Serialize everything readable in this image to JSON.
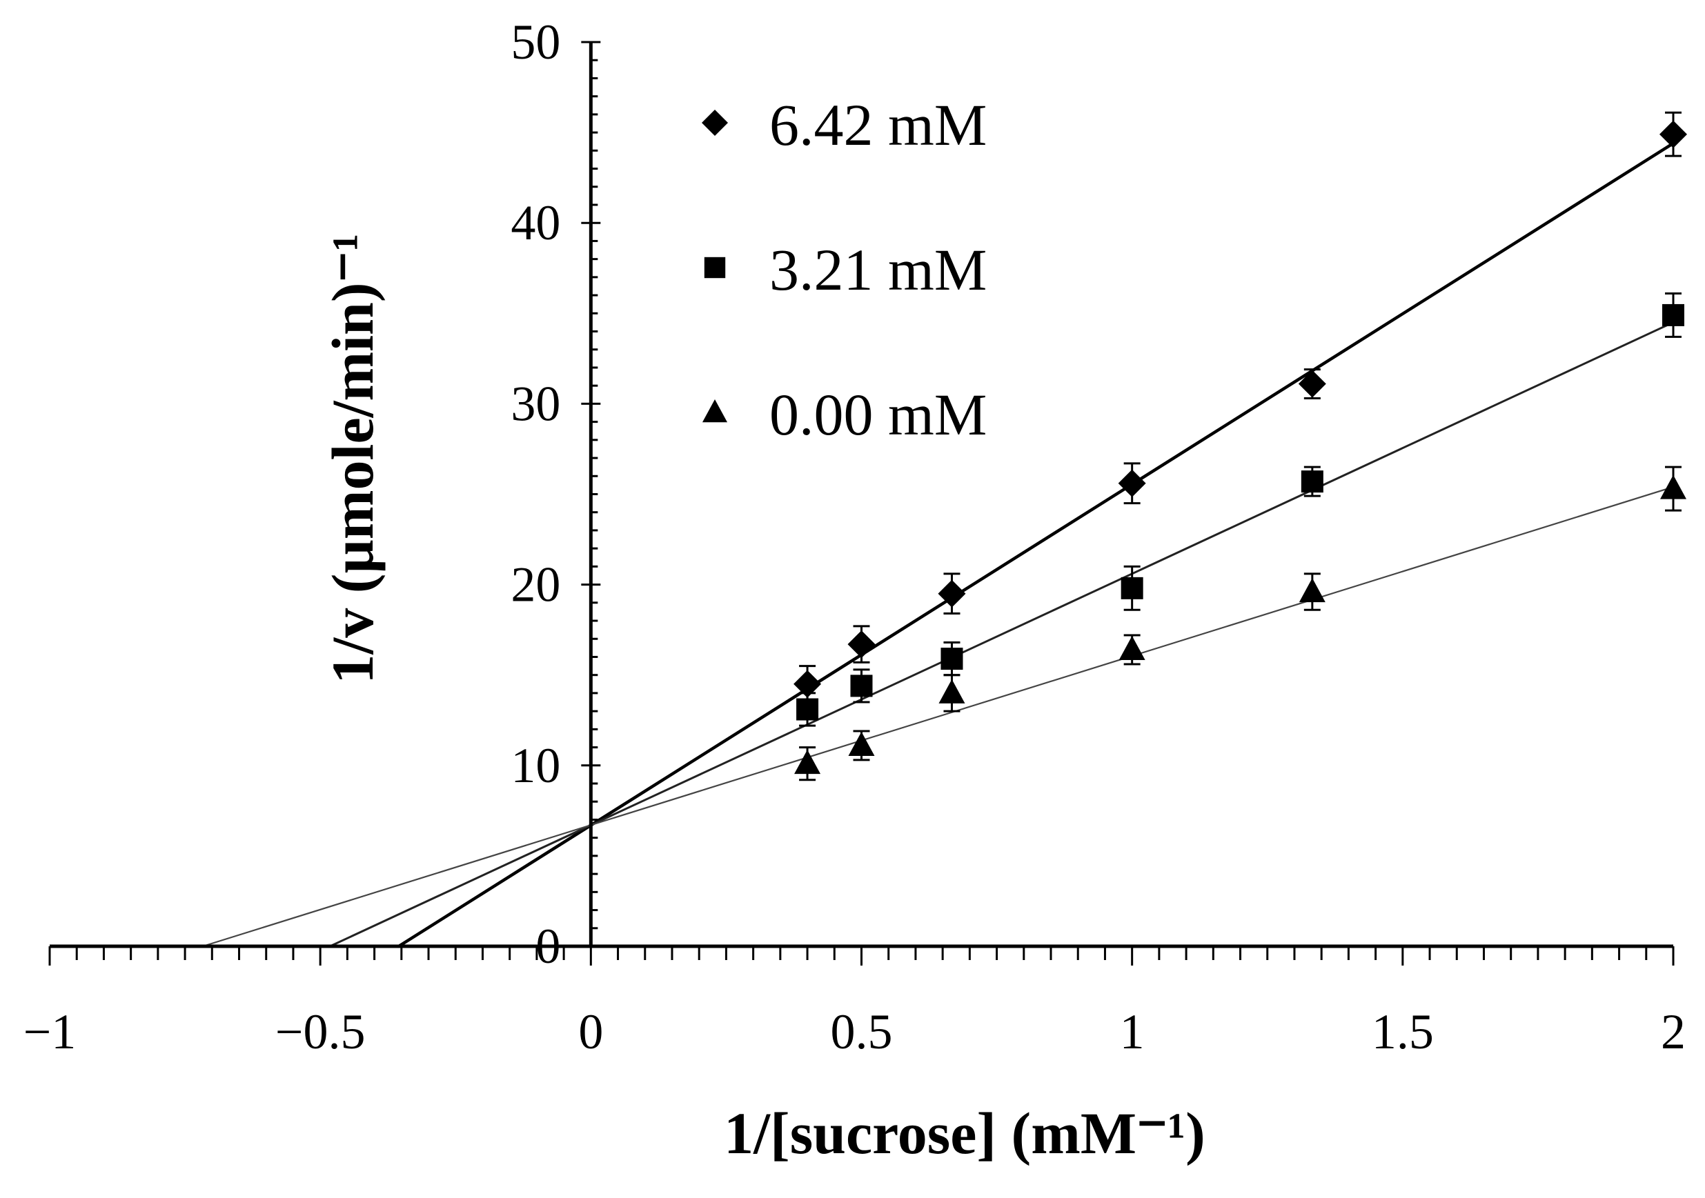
{
  "chart_data": {
    "type": "line",
    "title": "",
    "xlabel": "1/[sucrose]  (mM⁻¹)",
    "ylabel": "1/v (µmole/min)⁻¹",
    "xlim": [
      -1,
      2
    ],
    "ylim": [
      0,
      50
    ],
    "x_ticks": [
      "−1",
      "−0.5",
      "0",
      "0.5",
      "1",
      "1.5",
      "2"
    ],
    "y_ticks": [
      "0",
      "10",
      "20",
      "30",
      "40",
      "50"
    ],
    "grid": false,
    "legend_position": "top-left-of-plot",
    "series": [
      {
        "name": "6.42 mM",
        "marker": "diamond",
        "x": [
          0.4,
          0.5,
          0.667,
          1.0,
          1.333,
          2.0
        ],
        "y": [
          14.5,
          16.7,
          19.5,
          25.6,
          31.1,
          44.9
        ],
        "error": [
          1.0,
          1.0,
          1.1,
          1.1,
          0.8,
          1.2
        ],
        "fit": {
          "slope": 18.85,
          "intercept": 6.7,
          "x_intercept": -0.355
        }
      },
      {
        "name": "3.21 mM",
        "marker": "square",
        "x": [
          0.4,
          0.5,
          0.667,
          1.0,
          1.333,
          2.0
        ],
        "y": [
          13.1,
          14.4,
          15.9,
          19.8,
          25.7,
          34.9
        ],
        "error": [
          0.9,
          0.9,
          0.9,
          1.2,
          0.8,
          1.2
        ],
        "fit": {
          "slope": 13.9,
          "intercept": 6.7,
          "x_intercept": -0.482
        }
      },
      {
        "name": "0.00 mM",
        "marker": "triangle",
        "x": [
          0.4,
          0.5,
          0.667,
          1.0,
          1.333,
          2.0
        ],
        "y": [
          10.1,
          11.1,
          14.0,
          16.4,
          19.6,
          25.3
        ],
        "error": [
          0.9,
          0.8,
          1.0,
          0.8,
          1.0,
          1.2
        ],
        "fit": {
          "slope": 9.35,
          "intercept": 6.7,
          "x_intercept": -0.717
        }
      }
    ]
  }
}
